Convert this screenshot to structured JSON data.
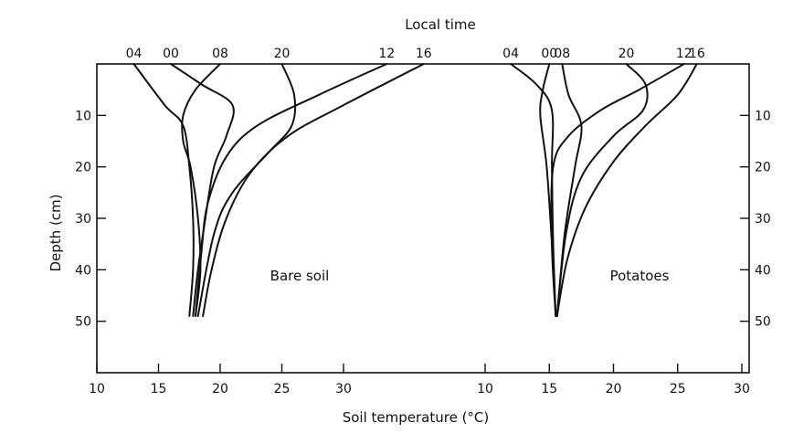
{
  "chart_data": {
    "type": "line",
    "title": "Local time",
    "xlabel": "Soil temperature (°C)",
    "ylabel": "Depth (cm)",
    "ylim": [
      60,
      0
    ],
    "yticks": [
      10,
      20,
      30,
      40,
      50
    ],
    "grid": false,
    "panels": [
      {
        "name": "Bare soil",
        "xlim": [
          10,
          40
        ],
        "xticks": [
          10,
          15,
          20,
          25,
          30
        ],
        "series": [
          {
            "name": "04",
            "points": [
              [
                13.0,
                0
              ],
              [
                15.5,
                8
              ],
              [
                17.0,
                12
              ],
              [
                17.5,
                20
              ],
              [
                17.8,
                30
              ],
              [
                17.8,
                40
              ],
              [
                17.5,
                49
              ]
            ]
          },
          {
            "name": "00",
            "points": [
              [
                16.0,
                0
              ],
              [
                18.5,
                4
              ],
              [
                21.0,
                8
              ],
              [
                20.5,
                14
              ],
              [
                19.5,
                20
              ],
              [
                18.8,
                30
              ],
              [
                18.2,
                40
              ],
              [
                17.8,
                49
              ]
            ]
          },
          {
            "name": "08",
            "points": [
              [
                20.0,
                0
              ],
              [
                18.0,
                5
              ],
              [
                17.0,
                10
              ],
              [
                17.0,
                15
              ],
              [
                17.6,
                20
              ],
              [
                18.2,
                30
              ],
              [
                18.4,
                40
              ],
              [
                18.0,
                49
              ]
            ]
          },
          {
            "name": "20",
            "points": [
              [
                25.0,
                0
              ],
              [
                26.0,
                6
              ],
              [
                25.8,
                12
              ],
              [
                24.0,
                17
              ],
              [
                21.0,
                25
              ],
              [
                19.5,
                33
              ],
              [
                18.2,
                49
              ]
            ]
          },
          {
            "name": "12",
            "points": [
              [
                33.5,
                0
              ],
              [
                28.0,
                6
              ],
              [
                23.0,
                12
              ],
              [
                20.5,
                18
              ],
              [
                19.0,
                27
              ],
              [
                18.5,
                36
              ],
              [
                18.0,
                49
              ]
            ]
          },
          {
            "name": "16",
            "points": [
              [
                36.5,
                0
              ],
              [
                30.0,
                8
              ],
              [
                25.5,
                14
              ],
              [
                22.5,
                21
              ],
              [
                20.5,
                30
              ],
              [
                19.3,
                40
              ],
              [
                18.6,
                49
              ]
            ]
          }
        ]
      },
      {
        "name": "Potatoes",
        "xlim": [
          10,
          30
        ],
        "xticks": [
          10,
          15,
          20,
          25,
          30
        ],
        "series": [
          {
            "name": "04",
            "points": [
              [
                12.0,
                0
              ],
              [
                14.0,
                4
              ],
              [
                15.2,
                9
              ],
              [
                15.2,
                20
              ],
              [
                15.3,
                35
              ],
              [
                15.5,
                49
              ]
            ]
          },
          {
            "name": "00",
            "points": [
              [
                15.0,
                0
              ],
              [
                14.5,
                5
              ],
              [
                14.3,
                10
              ],
              [
                14.8,
                20
              ],
              [
                15.2,
                35
              ],
              [
                15.5,
                49
              ]
            ]
          },
          {
            "name": "08",
            "points": [
              [
                16.0,
                0
              ],
              [
                16.5,
                6
              ],
              [
                17.5,
                12
              ],
              [
                17.0,
                20
              ],
              [
                16.2,
                33
              ],
              [
                15.6,
                49
              ]
            ]
          },
          {
            "name": "20",
            "points": [
              [
                21.0,
                0
              ],
              [
                22.5,
                4
              ],
              [
                22.3,
                9
              ],
              [
                20.0,
                14
              ],
              [
                17.5,
                22
              ],
              [
                16.3,
                33
              ],
              [
                15.6,
                49
              ]
            ]
          },
          {
            "name": "12",
            "points": [
              [
                25.5,
                0
              ],
              [
                22.0,
                5
              ],
              [
                19.0,
                9
              ],
              [
                16.5,
                14
              ],
              [
                15.3,
                20
              ],
              [
                15.2,
                35
              ],
              [
                15.5,
                49
              ]
            ]
          },
          {
            "name": "16",
            "points": [
              [
                26.5,
                0
              ],
              [
                25.0,
                6
              ],
              [
                22.5,
                12
              ],
              [
                20.0,
                19
              ],
              [
                17.8,
                28
              ],
              [
                16.4,
                38
              ],
              [
                15.6,
                49
              ]
            ]
          }
        ]
      }
    ]
  }
}
